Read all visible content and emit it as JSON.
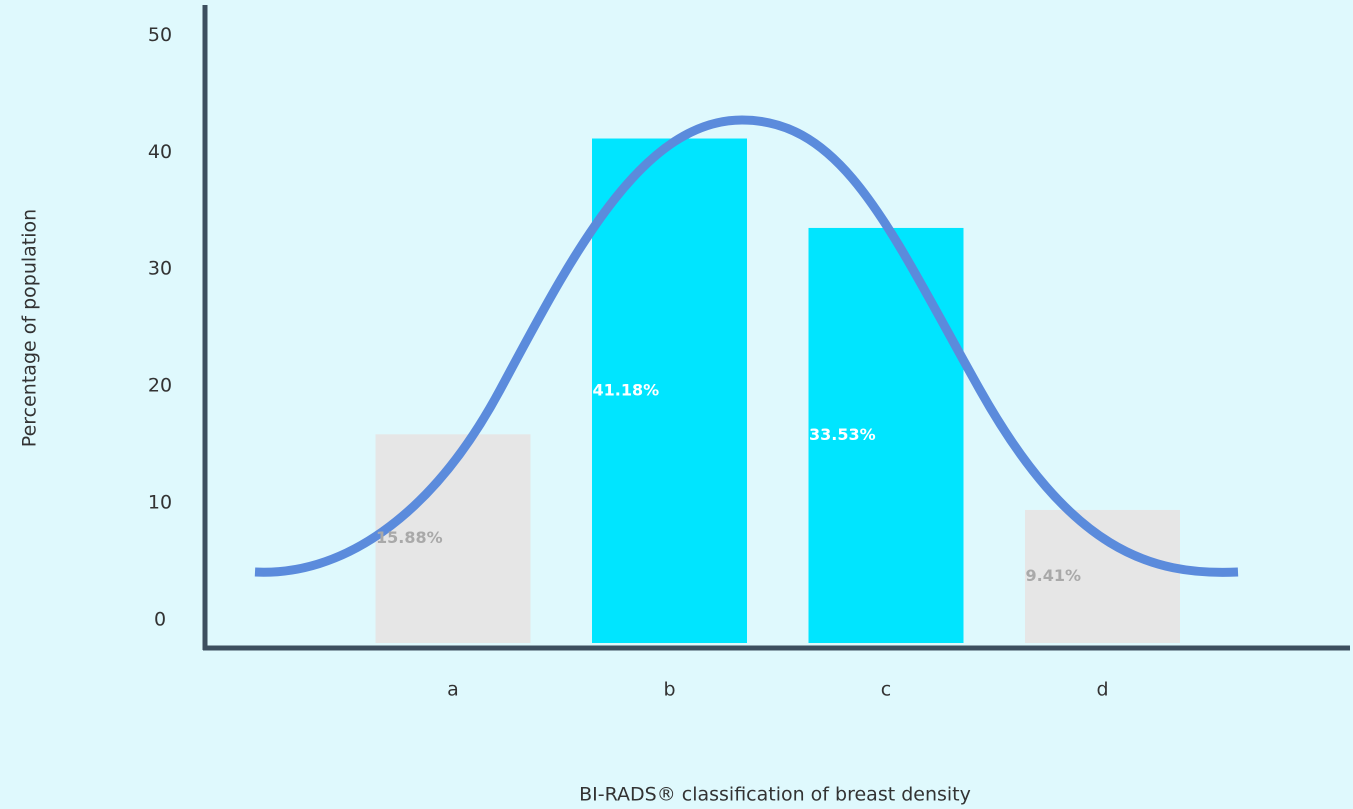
{
  "chart_data": {
    "type": "bar",
    "categories": [
      "a",
      "b",
      "c",
      "d"
    ],
    "values": [
      15.88,
      41.18,
      33.53,
      9.41
    ],
    "value_labels": [
      "15.88%",
      "41.18%",
      "33.53%",
      "9.41%"
    ],
    "colors": [
      "#e6e6e6",
      "#00e5ff",
      "#00e5ff",
      "#e6e6e6"
    ],
    "label_colors": [
      "#a9a9a9",
      "#ffffff",
      "#ffffff",
      "#a9a9a9"
    ],
    "x_label": "BI-RADS® classification of breast density",
    "y_label": "Percentage of population",
    "ylim": [
      -2.4,
      52.6
    ],
    "yticks": [
      0,
      10,
      20,
      30,
      40,
      50
    ]
  }
}
